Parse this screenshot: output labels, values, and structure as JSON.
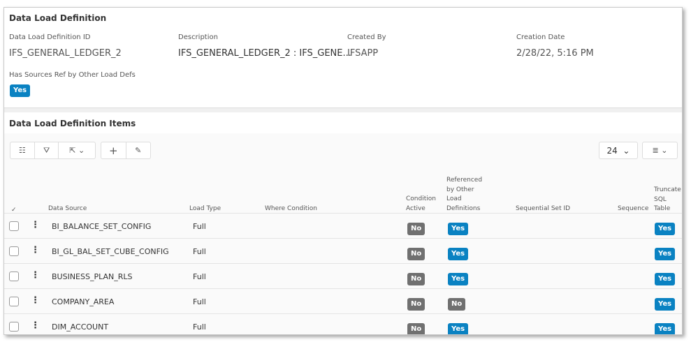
{
  "header": {
    "title": "Data Load Definition",
    "fields": [
      {
        "label": "Data Load Definition ID",
        "value": "IFS_GENERAL_LEDGER_2"
      },
      {
        "label": "Description",
        "value": "IFS_GENERAL_LEDGER_2 : IFS_GENE..."
      },
      {
        "label": "Created By",
        "value": "IFSAPP"
      },
      {
        "label": "Creation Date",
        "value": "2/28/22, 5:16 PM"
      }
    ],
    "has_sources_label": "Has Sources Ref by Other Load Defs",
    "has_sources_value": "Yes"
  },
  "items": {
    "title": "Data Load Definition Items",
    "page_size": "24",
    "columns": {
      "data_source": "Data Source",
      "load_type": "Load Type",
      "where": "Where Condition",
      "cond1": "Condition",
      "cond2": "Active",
      "ref1": "Referenced",
      "ref2": "by Other",
      "ref3": "Load",
      "ref4": "Definitions",
      "seqset": "Sequential Set ID",
      "seq": "Sequence",
      "tr1": "Truncate",
      "tr2": "SQL",
      "tr3": "Table"
    },
    "rows": [
      {
        "source": "BI_BALANCE_SET_CONFIG",
        "load_type": "Full",
        "condition_active": "No",
        "referenced": "Yes",
        "truncate": "Yes"
      },
      {
        "source": "BI_GL_BAL_SET_CUBE_CONFIG",
        "load_type": "Full",
        "condition_active": "No",
        "referenced": "Yes",
        "truncate": "Yes"
      },
      {
        "source": "BUSINESS_PLAN_RLS",
        "load_type": "Full",
        "condition_active": "No",
        "referenced": "Yes",
        "truncate": "Yes"
      },
      {
        "source": "COMPANY_AREA",
        "load_type": "Full",
        "condition_active": "No",
        "referenced": "No",
        "truncate": "Yes"
      },
      {
        "source": "DIM_ACCOUNT",
        "load_type": "Full",
        "condition_active": "No",
        "referenced": "Yes",
        "truncate": "Yes"
      }
    ]
  }
}
